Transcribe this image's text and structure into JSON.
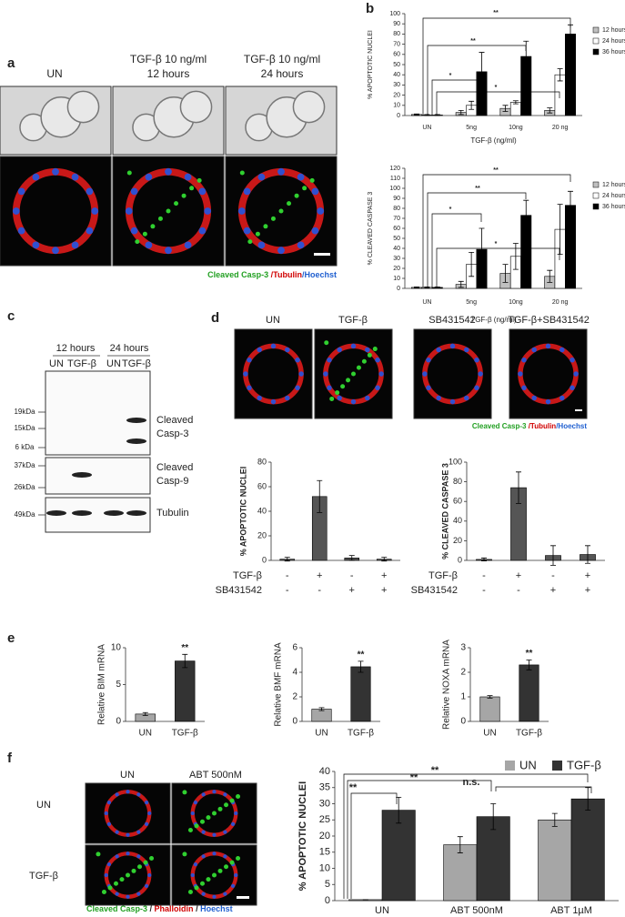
{
  "panel_labels": [
    "a",
    "b",
    "c",
    "d",
    "e",
    "f"
  ],
  "panel_a": {
    "columns": [
      [
        "UN"
      ],
      [
        "TGF-β 10 ng/ml",
        "12 hours"
      ],
      [
        "TGF-β 10 ng/ml",
        "24 hours"
      ]
    ],
    "caption": [
      {
        "text": "Cleaved Casp-3 ",
        "color": "#22a022"
      },
      {
        "text": "/Tubulin",
        "color": "#d00000"
      },
      {
        "text": "/Hoechst",
        "color": "#1f5fd0"
      }
    ]
  },
  "panel_c": {
    "time_labels": [
      "12 hours",
      "24 hours"
    ],
    "lanes": [
      "UN",
      "TGF-β",
      "UN",
      "TGF-β"
    ],
    "markers": [
      "19kDa",
      "15kDa",
      "6 kDa",
      "37kDa",
      "26kDa",
      "49kDa"
    ],
    "bands": [
      [
        "Cleaved",
        "Casp-3"
      ],
      [
        "Cleaved",
        "Casp-9"
      ],
      [
        "Tubulin"
      ]
    ]
  },
  "panel_d": {
    "columns": [
      "UN",
      "TGF-β",
      "SB431542",
      "TGF-β+SB431542"
    ],
    "caption": [
      {
        "text": "Cleaved Casp-3 ",
        "color": "#22a022"
      },
      {
        "text": "/Tubulin",
        "color": "#d00000"
      },
      {
        "text": "/Hoechst",
        "color": "#1f5fd0"
      }
    ]
  },
  "panel_f": {
    "columns": [
      "UN",
      "ABT 500nM"
    ],
    "rows": [
      "UN",
      "TGF-β"
    ],
    "caption": [
      {
        "text": "Cleaved Casp-3",
        "color": "#22a022"
      },
      {
        "text": " / ",
        "color": "#222222"
      },
      {
        "text": "Phalloidin",
        "color": "#d00000"
      },
      {
        "text": " / ",
        "color": "#222222"
      },
      {
        "text": "Hoechst",
        "color": "#1f5fd0"
      }
    ]
  },
  "chart_data": [
    {
      "type": "bar",
      "ylabel": "% APOPTOTIC NUCLEI",
      "xlabel": "TGF-β (ng/ml)",
      "categories": [
        "UN",
        "5ng",
        "10ng",
        "20 ng"
      ],
      "series": [
        {
          "name": "12 hours",
          "color": "#c0c0c0",
          "values": [
            1,
            3,
            7,
            5
          ],
          "errors": [
            0.5,
            2,
            3,
            2.5
          ]
        },
        {
          "name": "24 hours",
          "color": "#ffffff",
          "values": [
            0.5,
            10,
            13,
            40
          ],
          "errors": [
            0.5,
            4,
            1.5,
            6
          ]
        },
        {
          "name": "36 hours",
          "color": "#000000",
          "values": [
            0.5,
            43,
            58,
            80
          ],
          "errors": [
            0.5,
            19,
            15,
            9
          ]
        }
      ],
      "ylim": [
        0,
        100
      ],
      "yticks": [
        0,
        10,
        20,
        30,
        40,
        50,
        60,
        70,
        80,
        90,
        100
      ],
      "annotations": [
        "**",
        "**",
        "*",
        "*"
      ]
    },
    {
      "type": "bar",
      "ylabel": "% CLEAVED CASPASE 3",
      "xlabel": "TGF-β (ng/ml)",
      "categories": [
        "UN",
        "5ng",
        "10ng",
        "20 ng"
      ],
      "series": [
        {
          "name": "12 hours",
          "color": "#c0c0c0",
          "values": [
            1,
            4,
            15,
            12
          ],
          "errors": [
            0.5,
            3,
            9,
            6
          ]
        },
        {
          "name": "24 hours",
          "color": "#ffffff",
          "values": [
            1,
            24,
            32,
            59
          ],
          "errors": [
            0.5,
            12,
            13,
            25
          ]
        },
        {
          "name": "36 hours",
          "color": "#000000",
          "values": [
            1,
            39,
            73,
            83
          ],
          "errors": [
            0.5,
            21,
            15,
            14
          ]
        }
      ],
      "ylim": [
        0,
        120
      ],
      "yticks": [
        0,
        10,
        20,
        30,
        40,
        50,
        60,
        70,
        80,
        90,
        100,
        110,
        120
      ],
      "annotations": [
        "**",
        "**",
        "*",
        "*"
      ]
    },
    {
      "type": "bar",
      "ylabel": "% APOPTOTIC NUCLEI",
      "categories": [
        null,
        null,
        null,
        null
      ],
      "values": [
        1,
        52,
        2,
        1
      ],
      "errors": [
        1.5,
        13,
        2,
        1.5
      ],
      "color": "#555555",
      "ylim": [
        0,
        80
      ],
      "yticks": [
        0,
        20,
        40,
        60,
        80
      ],
      "conditions": [
        {
          "name": "TGF-β",
          "signs": [
            "-",
            "+",
            "-",
            "+"
          ]
        },
        {
          "name": "SB431542",
          "signs": [
            "-",
            "-",
            "+",
            "+"
          ]
        }
      ]
    },
    {
      "type": "bar",
      "ylabel": "% CLEAVED CASPASE 3",
      "categories": [
        null,
        null,
        null,
        null
      ],
      "values": [
        1,
        74,
        5,
        6
      ],
      "errors": [
        1.5,
        16,
        10,
        9
      ],
      "color": "#555555",
      "ylim": [
        0,
        100
      ],
      "yticks": [
        0,
        20,
        40,
        60,
        80,
        100
      ],
      "conditions": [
        {
          "name": "TGF-β",
          "signs": [
            "-",
            "+",
            "-",
            "+"
          ]
        },
        {
          "name": "SB431542",
          "signs": [
            "-",
            "-",
            "+",
            "+"
          ]
        }
      ]
    },
    {
      "type": "bar",
      "ylabel": "Relative BIM mRNA",
      "categories": [
        "UN",
        "TGF-β"
      ],
      "values": [
        1,
        8.2
      ],
      "errors": [
        0.2,
        0.9
      ],
      "colors": [
        "#a6a6a6",
        "#333333"
      ],
      "ylim": [
        0,
        10
      ],
      "yticks": [
        0,
        5,
        10
      ],
      "annotations": [
        "**"
      ]
    },
    {
      "type": "bar",
      "ylabel": "Relative BMF mRNA",
      "categories": [
        "UN",
        "TGF-β"
      ],
      "values": [
        1,
        4.45
      ],
      "errors": [
        0.12,
        0.45
      ],
      "colors": [
        "#a6a6a6",
        "#333333"
      ],
      "ylim": [
        0,
        6
      ],
      "yticks": [
        0,
        2,
        4,
        6
      ],
      "annotations": [
        "**"
      ]
    },
    {
      "type": "bar",
      "ylabel": "Relative NOXA mRNA",
      "categories": [
        "UN",
        "TGF-β"
      ],
      "values": [
        1,
        2.3
      ],
      "errors": [
        0.05,
        0.2
      ],
      "colors": [
        "#a6a6a6",
        "#333333"
      ],
      "ylim": [
        0,
        3
      ],
      "yticks": [
        0,
        1,
        2,
        3
      ],
      "annotations": [
        "**"
      ]
    },
    {
      "type": "bar",
      "ylabel": "% APOPTOTIC NUCLEI",
      "categories": [
        "UN",
        "ABT 500nM",
        "ABT 1µM"
      ],
      "series": [
        {
          "name": "UN",
          "color": "#a6a6a6",
          "values": [
            0.3,
            17.3,
            25
          ],
          "errors": [
            0,
            2.5,
            2
          ]
        },
        {
          "name": "TGF-β",
          "color": "#333333",
          "values": [
            28,
            26,
            31.5
          ],
          "errors": [
            4,
            4,
            3.5
          ]
        }
      ],
      "ylim": [
        0,
        40
      ],
      "yticks": [
        0,
        5,
        10,
        15,
        20,
        25,
        30,
        35,
        40
      ],
      "annotations": [
        "**",
        "**",
        "**",
        "n.s."
      ]
    }
  ]
}
